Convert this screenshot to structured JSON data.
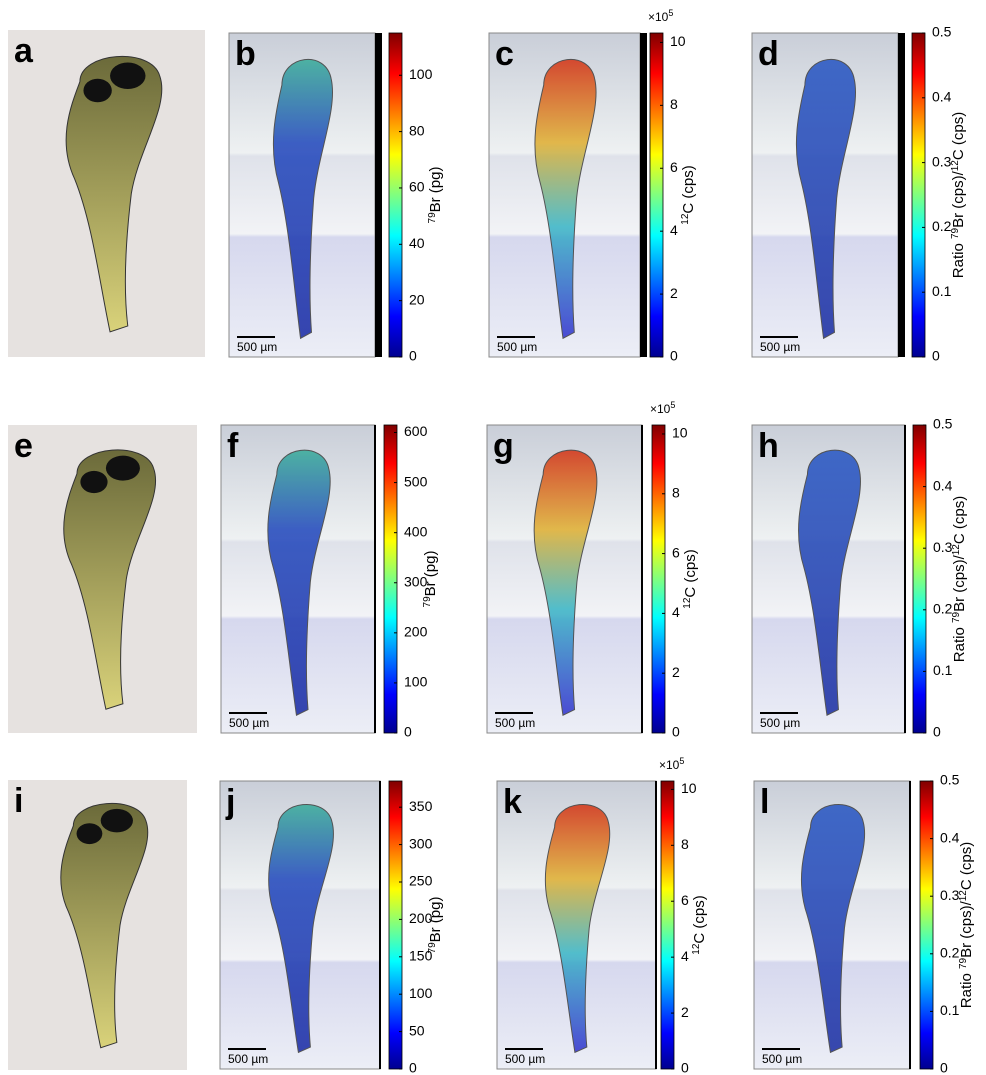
{
  "panels": [
    {
      "letter": "a"
    },
    {
      "letter": "b",
      "scale_bar": "500 µm",
      "colorbar": {
        "range": [
          0,
          115
        ],
        "ticks": [
          0,
          20,
          40,
          60,
          80,
          100
        ],
        "label": [
          {
            "text": "79",
            "sup": true
          },
          {
            "text": "Br (pg)"
          }
        ]
      }
    },
    {
      "letter": "c",
      "scale_bar": "500 µm",
      "colorbar": {
        "range": [
          0,
          10.3
        ],
        "ticks": [
          0,
          2,
          4,
          6,
          8,
          10
        ],
        "multiplier": [
          {
            "text": "×10"
          },
          {
            "text": "5",
            "sup": true
          }
        ],
        "label": [
          {
            "text": "12",
            "sup": true
          },
          {
            "text": "C (cps)"
          }
        ]
      }
    },
    {
      "letter": "d",
      "scale_bar": "500 µm",
      "colorbar": {
        "range": [
          0,
          0.5
        ],
        "ticks": [
          0,
          0.1,
          0.2,
          0.3,
          0.4,
          0.5
        ],
        "label": [
          {
            "text": "Ratio "
          },
          {
            "text": "79",
            "sup": true
          },
          {
            "text": "Br (cps)/"
          },
          {
            "text": "12",
            "sup": true
          },
          {
            "text": "C (cps)"
          }
        ]
      }
    },
    {
      "letter": "e"
    },
    {
      "letter": "f",
      "scale_bar": "500 µm",
      "colorbar": {
        "range": [
          0,
          615
        ],
        "ticks": [
          0,
          100,
          200,
          300,
          400,
          500,
          600
        ],
        "label": [
          {
            "text": "79",
            "sup": true
          },
          {
            "text": "Br (pg)"
          }
        ]
      }
    },
    {
      "letter": "g",
      "scale_bar": "500 µm",
      "colorbar": {
        "range": [
          0,
          10.3
        ],
        "ticks": [
          0,
          2,
          4,
          6,
          8,
          10
        ],
        "multiplier": [
          {
            "text": "×10"
          },
          {
            "text": "5",
            "sup": true
          }
        ],
        "label": [
          {
            "text": "12",
            "sup": true
          },
          {
            "text": "C (cps)"
          }
        ]
      }
    },
    {
      "letter": "h",
      "scale_bar": "500 µm",
      "colorbar": {
        "range": [
          0,
          0.5
        ],
        "ticks": [
          0,
          0.1,
          0.2,
          0.3,
          0.4,
          0.5
        ],
        "label": [
          {
            "text": "Ratio "
          },
          {
            "text": "79",
            "sup": true
          },
          {
            "text": "Br (cps)/"
          },
          {
            "text": "12",
            "sup": true
          },
          {
            "text": "C (cps)"
          }
        ]
      }
    },
    {
      "letter": "i"
    },
    {
      "letter": "j",
      "scale_bar": "500 µm",
      "colorbar": {
        "range": [
          0,
          385
        ],
        "ticks": [
          0,
          50,
          100,
          150,
          200,
          250,
          300,
          350
        ],
        "label": [
          {
            "text": "79",
            "sup": true
          },
          {
            "text": "Br (pg)"
          }
        ]
      }
    },
    {
      "letter": "k",
      "scale_bar": "500 µm",
      "colorbar": {
        "range": [
          0,
          10.3
        ],
        "ticks": [
          0,
          2,
          4,
          6,
          8,
          10
        ],
        "multiplier": [
          {
            "text": "×10"
          },
          {
            "text": "5",
            "sup": true
          }
        ],
        "label": [
          {
            "text": "12",
            "sup": true
          },
          {
            "text": "C (cps)"
          }
        ]
      }
    },
    {
      "letter": "l",
      "scale_bar": "500 µm",
      "colorbar": {
        "range": [
          0,
          0.5
        ],
        "ticks": [
          0,
          0.1,
          0.2,
          0.3,
          0.4,
          0.5
        ],
        "label": [
          {
            "text": "Ratio "
          },
          {
            "text": "79",
            "sup": true
          },
          {
            "text": "Br (cps)/"
          },
          {
            "text": "12",
            "sup": true
          },
          {
            "text": "C (cps)"
          }
        ]
      }
    }
  ]
}
